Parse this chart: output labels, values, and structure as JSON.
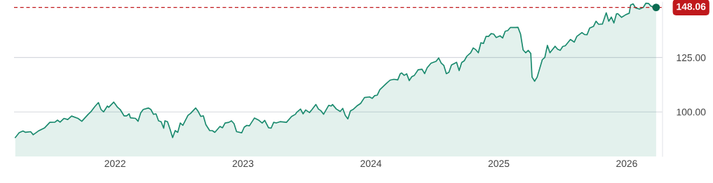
{
  "chart_data": {
    "type": "area",
    "series": [
      {
        "color": "#1a8a6e",
        "x": [
          2021.22,
          2021.25,
          2021.28,
          2021.3,
          2021.34,
          2021.36,
          2021.4,
          2021.45,
          2021.49,
          2021.53,
          2021.55,
          2021.57,
          2021.6,
          2021.63,
          2021.66,
          2021.71,
          2021.74,
          2021.79,
          2021.81,
          2021.84,
          2021.87,
          2021.89,
          2021.91,
          2021.94,
          2021.95,
          2021.99,
          2022.02,
          2022.04,
          2022.07,
          2022.09,
          2022.11,
          2022.12,
          2022.16,
          2022.18,
          2022.2,
          2022.22,
          2022.26,
          2022.28,
          2022.3,
          2022.32,
          2022.34,
          2022.36,
          2022.38,
          2022.39,
          2022.41,
          2022.43,
          2022.45,
          2022.47,
          2022.49,
          2022.51,
          2022.53,
          2022.57,
          2022.59,
          2022.63,
          2022.65,
          2022.67,
          2022.69,
          2022.71,
          2022.74,
          2022.76,
          2022.78,
          2022.82,
          2022.84,
          2022.86,
          2022.89,
          2022.91,
          2022.93,
          2022.95,
          2022.99,
          2023.01,
          2023.03,
          2023.05,
          2023.09,
          2023.12,
          2023.15,
          2023.17,
          2023.2,
          2023.22,
          2023.24,
          2023.26,
          2023.29,
          2023.34,
          2023.38,
          2023.41,
          2023.42,
          2023.45,
          2023.47,
          2023.49,
          2023.52,
          2023.54,
          2023.57,
          2023.59,
          2023.61,
          2023.63,
          2023.67,
          2023.69,
          2023.7,
          2023.73,
          2023.76,
          2023.78,
          2023.8,
          2023.82,
          2023.84,
          2023.86,
          2023.89,
          2023.92,
          2023.95,
          2023.99,
          2024.01,
          2024.03,
          2024.05,
          2024.07,
          2024.12,
          2024.15,
          2024.18,
          2024.21,
          2024.23,
          2024.24,
          2024.26,
          2024.28,
          2024.3,
          2024.32,
          2024.34,
          2024.37,
          2024.4,
          2024.42,
          2024.44,
          2024.47,
          2024.51,
          2024.53,
          2024.55,
          2024.57,
          2024.59,
          2024.61,
          2024.63,
          2024.67,
          2024.69,
          2024.71,
          2024.73,
          2024.75,
          2024.78,
          2024.8,
          2024.82,
          2024.84,
          2024.86,
          2024.88,
          2024.9,
          2024.92,
          2024.94,
          2024.96,
          2024.98,
          2025.01,
          2025.03,
          2025.05,
          2025.07,
          2025.09,
          2025.13,
          2025.15,
          2025.17,
          2025.19,
          2025.21,
          2025.23,
          2025.25,
          2025.26,
          2025.28,
          2025.3,
          2025.34,
          2025.36,
          2025.38,
          2025.4,
          2025.44,
          2025.46,
          2025.48,
          2025.5,
          2025.52,
          2025.56,
          2025.59,
          2025.61,
          2025.65,
          2025.67,
          2025.69,
          2025.71,
          2025.74,
          2025.76,
          2025.78,
          2025.81,
          2025.84,
          2025.86,
          2025.88,
          2025.9,
          2025.92,
          2025.93,
          2025.96,
          2025.99,
          2026.02,
          2026.03,
          2026.05,
          2026.07,
          2026.1,
          2026.13,
          2026.15,
          2026.17,
          2026.19,
          2026.23
        ],
        "values": [
          88.2,
          90.4,
          91.2,
          90.6,
          90.9,
          89.5,
          91.2,
          92.7,
          95.2,
          95.3,
          96.2,
          95.3,
          97.0,
          96.5,
          98.1,
          97.0,
          95.7,
          98.9,
          100.0,
          102.3,
          104.3,
          101.1,
          100.0,
          102.7,
          102.1,
          104.5,
          102.1,
          101.1,
          98.2,
          98.2,
          99.1,
          97.3,
          97.0,
          95.7,
          99.5,
          101.1,
          101.8,
          101.1,
          98.9,
          99.1,
          95.9,
          95.5,
          92.5,
          95.9,
          95.5,
          92.0,
          88.2,
          91.4,
          90.6,
          94.9,
          93.8,
          98.4,
          99.3,
          101.8,
          100.2,
          97.9,
          98.2,
          94.1,
          91.4,
          91.4,
          90.6,
          93.3,
          92.7,
          94.9,
          95.2,
          95.9,
          94.6,
          90.9,
          90.4,
          93.0,
          93.8,
          93.6,
          97.2,
          96.3,
          94.9,
          96.1,
          92.7,
          92.5,
          95.2,
          94.9,
          95.5,
          95.2,
          97.9,
          98.9,
          99.8,
          101.3,
          99.1,
          100.9,
          99.7,
          101.1,
          103.4,
          101.3,
          100.5,
          98.9,
          103.0,
          102.7,
          103.4,
          101.3,
          100.2,
          101.6,
          98.4,
          96.8,
          100.5,
          101.1,
          102.7,
          103.9,
          106.6,
          106.9,
          106.2,
          107.5,
          107.7,
          110.2,
          113.0,
          114.6,
          115.0,
          114.7,
          117.6,
          117.9,
          116.8,
          117.5,
          114.4,
          116.2,
          116.8,
          119.4,
          119.6,
          117.6,
          120.3,
          122.4,
          123.3,
          124.8,
          122.4,
          121.4,
          117.6,
          118.2,
          121.6,
          122.8,
          119.0,
          122.7,
          123.5,
          125.6,
          127.2,
          129.4,
          128.6,
          127.2,
          131.8,
          131.5,
          134.7,
          134.7,
          136.0,
          135.8,
          134.2,
          135.0,
          134.0,
          137.1,
          137.4,
          138.8,
          138.8,
          138.9,
          135.8,
          128.5,
          127.2,
          128.3,
          126.9,
          116.0,
          114.1,
          116.0,
          124.0,
          125.1,
          130.6,
          127.2,
          130.2,
          128.8,
          128.3,
          130.1,
          130.4,
          133.3,
          132.1,
          134.7,
          136.5,
          135.6,
          135.5,
          138.5,
          139.3,
          141.7,
          140.3,
          140.4,
          145.6,
          141.7,
          143.6,
          140.9,
          145.1,
          145.2,
          143.5,
          144.6,
          145.4,
          149.1,
          149.7,
          147.8,
          147.3,
          148.1,
          150.0,
          149.9,
          148.6,
          148.06
        ]
      },
      {
        "type": "scatter",
        "color": "#0b6b52",
        "marker": "circle",
        "x": [
          2026.23
        ],
        "values": [
          148.06
        ]
      }
    ],
    "xlim": [
      2021.21,
      2026.28
    ],
    "xticks": [
      {
        "value": 2022,
        "label": "2022"
      },
      {
        "value": 2023,
        "label": "2023"
      },
      {
        "value": 2024,
        "label": "2024"
      },
      {
        "value": 2025,
        "label": "2025"
      },
      {
        "value": 2026,
        "label": "2026"
      }
    ],
    "ylim": [
      79.5,
      150.5
    ],
    "yticks": [
      {
        "value": 100,
        "label": "100.00"
      },
      {
        "value": 125,
        "label": "125.00"
      }
    ],
    "grid": "y",
    "ref_lines": [
      {
        "axis": "y",
        "value": 148.06,
        "label": "148.06",
        "color": "#c0191c",
        "line_style": "dashed"
      }
    ]
  }
}
